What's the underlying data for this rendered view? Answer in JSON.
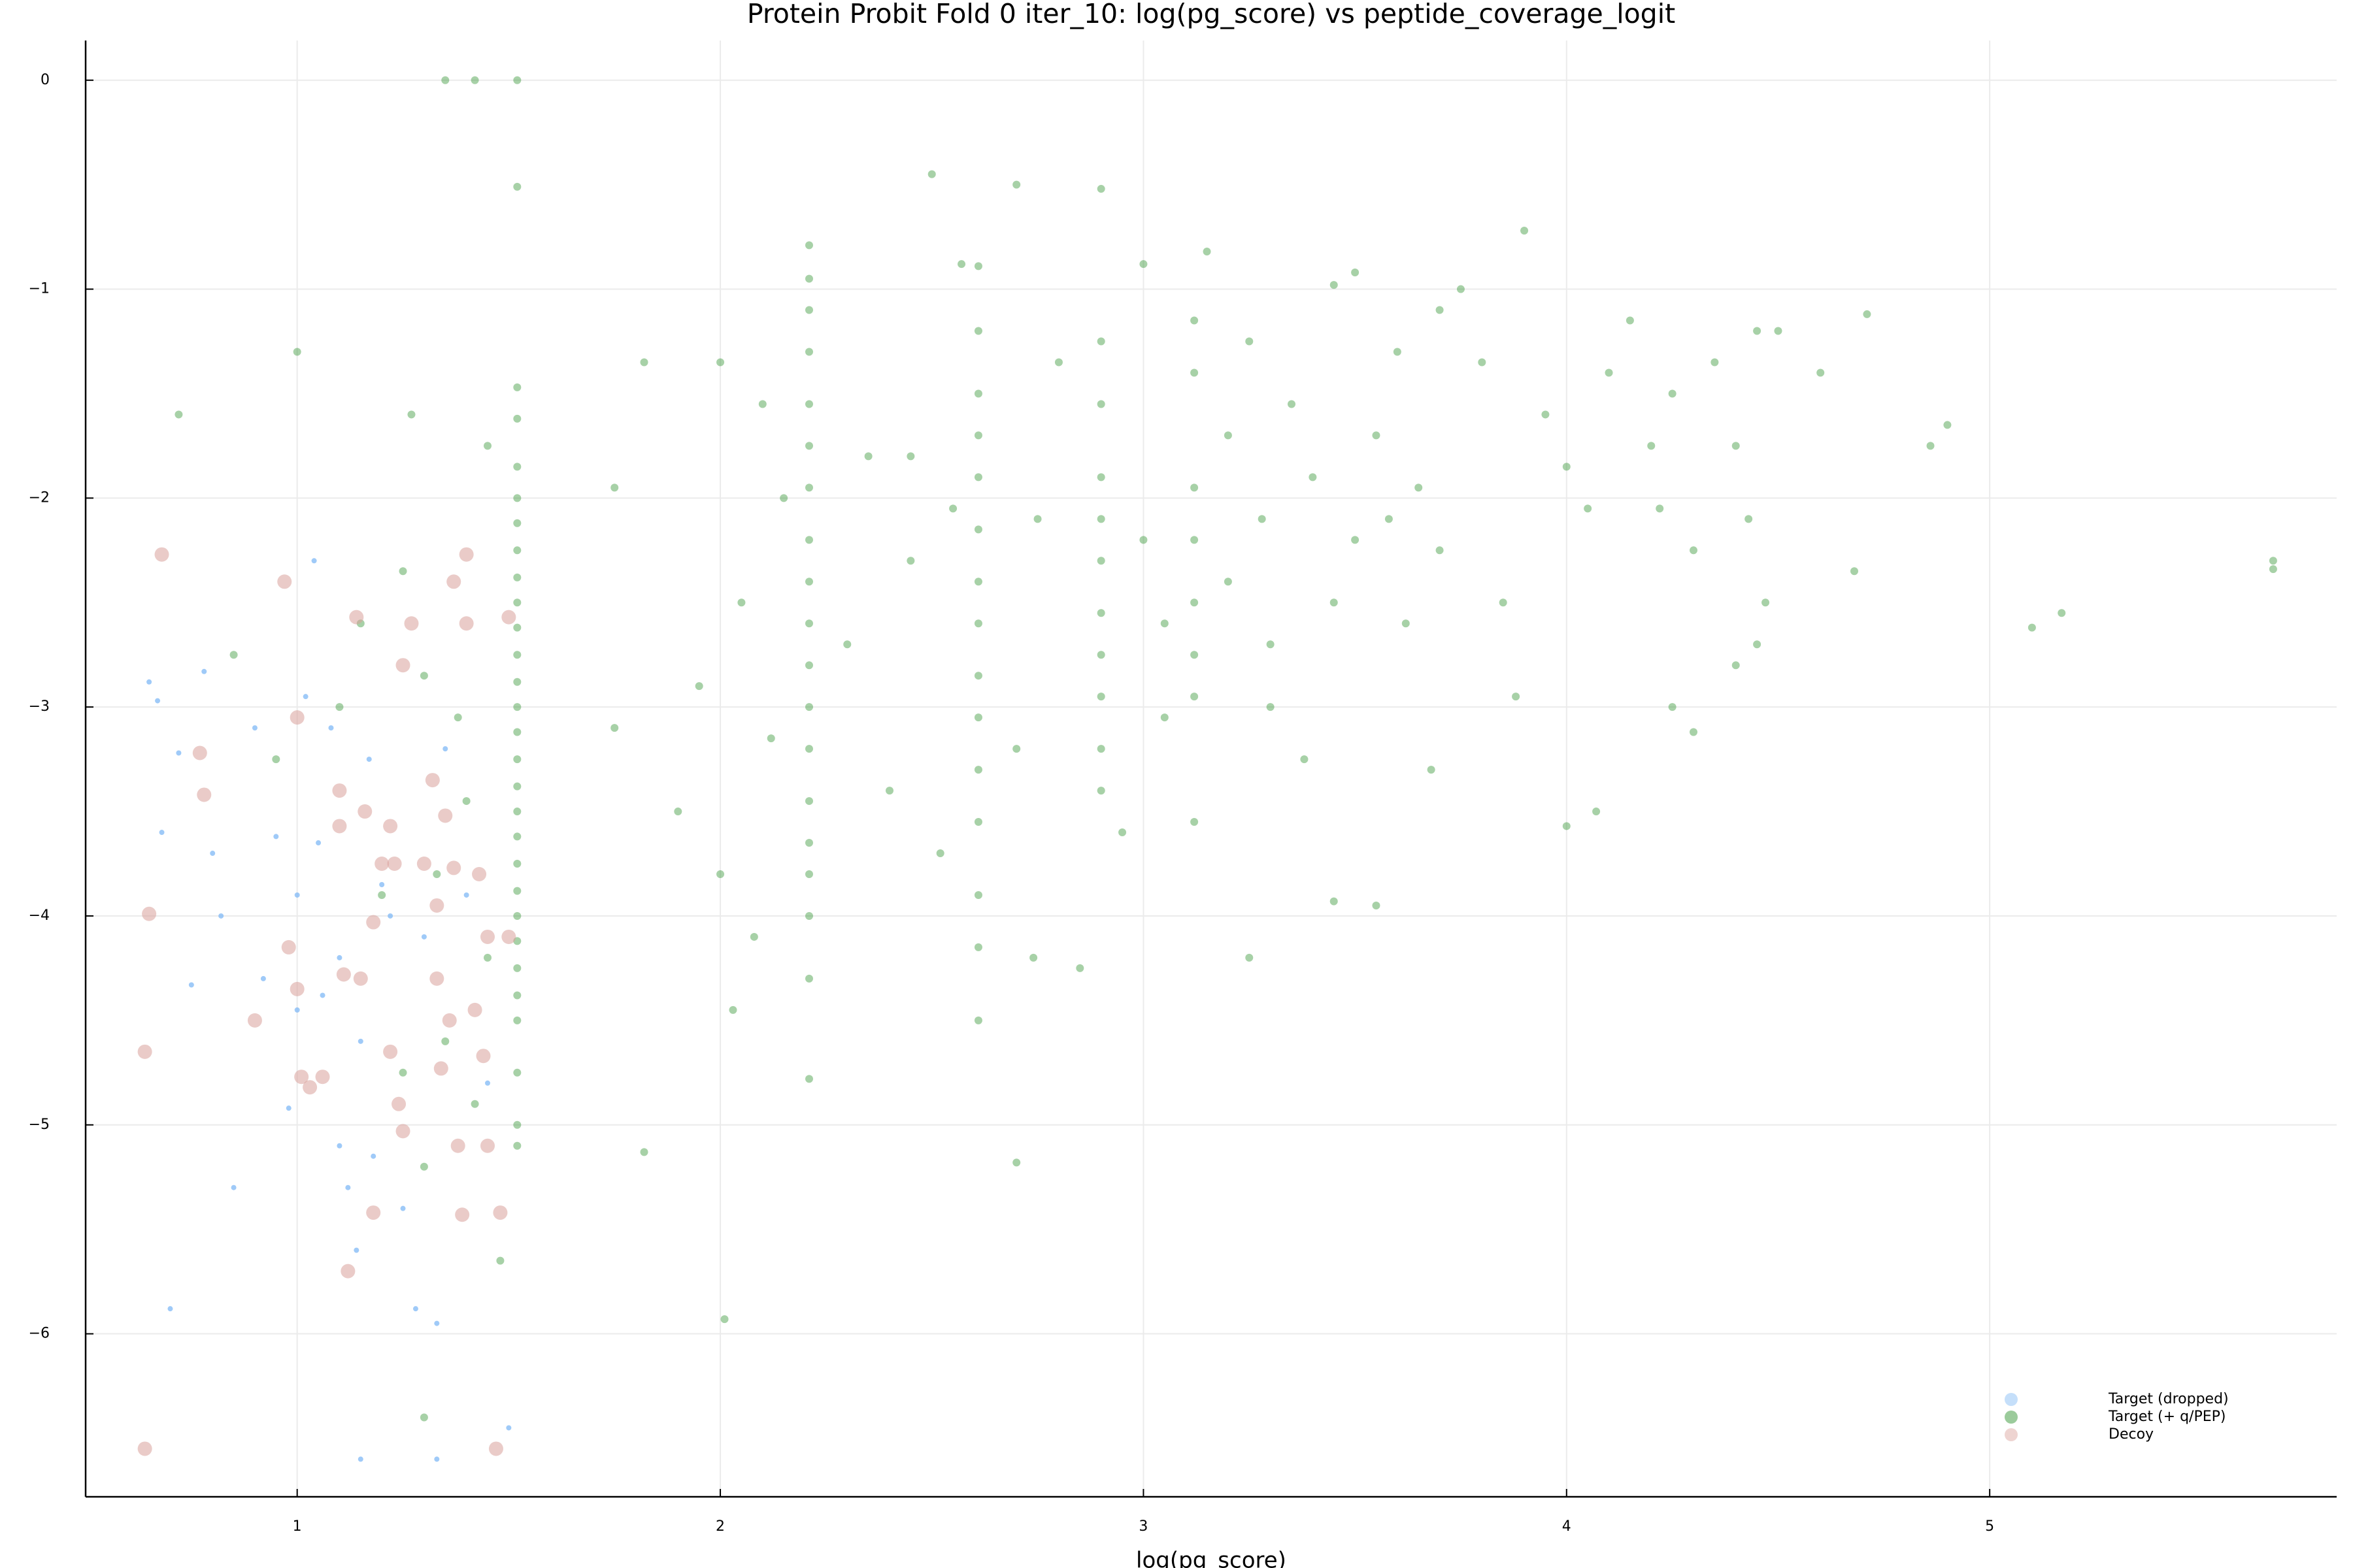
{
  "chart_data": {
    "type": "scatter",
    "title": "Protein Probit Fold 0 iter_10: log(pg_score) vs peptide_coverage_logit",
    "x_label": "log(pg_score)",
    "xlim": [
      0.5,
      5.82
    ],
    "ylim": [
      -6.78,
      0.19
    ],
    "xticks": [
      1,
      2,
      3,
      4,
      5
    ],
    "yticks": [
      {
        "value": 0,
        "label": "0"
      },
      {
        "value": -1,
        "label": "−1"
      },
      {
        "value": -2,
        "label": "−2"
      },
      {
        "value": -3,
        "label": "−3"
      },
      {
        "value": -4,
        "label": "−4"
      },
      {
        "value": -5,
        "label": "−5"
      },
      {
        "value": -6,
        "label": "−6"
      }
    ],
    "grid": true,
    "legend": "bottom-right",
    "series": [
      {
        "name": "Target (dropped)",
        "color": "#7fb8f5",
        "x": [
          0.65,
          0.67,
          0.72,
          0.75,
          0.78,
          0.8,
          0.82,
          0.85,
          0.9,
          0.92,
          0.95,
          0.98,
          1.0,
          1.02,
          1.04,
          1.05,
          1.06,
          1.08,
          1.1,
          1.12,
          1.14,
          1.15,
          1.17,
          1.18,
          1.2,
          1.22,
          1.25,
          1.28,
          1.3,
          1.33,
          1.35,
          1.4,
          1.45,
          1.5,
          1.15,
          1.33,
          0.7,
          0.68,
          1.1,
          1.0
        ],
        "values": [
          -2.88,
          -2.97,
          -3.22,
          -4.33,
          -2.83,
          -3.7,
          -4.0,
          -5.3,
          -3.1,
          -4.3,
          -3.62,
          -4.92,
          -3.9,
          -2.95,
          -2.3,
          -3.65,
          -4.38,
          -3.1,
          -4.2,
          -5.3,
          -5.6,
          -4.6,
          -3.25,
          -5.15,
          -3.85,
          -4.0,
          -5.4,
          -5.88,
          -4.1,
          -5.95,
          -3.2,
          -3.9,
          -4.8,
          -6.45,
          -6.6,
          -6.6,
          -5.88,
          -3.6,
          -5.1,
          -4.45
        ]
      },
      {
        "name": "Target (+ q/PEP)",
        "color": "#228b22",
        "x": [
          1.52,
          1.52,
          1.52,
          1.52,
          1.52,
          1.52,
          1.52,
          1.52,
          1.52,
          1.52,
          1.52,
          1.52,
          1.52,
          1.52,
          1.52,
          1.52,
          1.52,
          1.52,
          1.52,
          1.52,
          1.52,
          1.52,
          1.52,
          1.52,
          1.52,
          1.52,
          1.52,
          1.52,
          1.52,
          2.21,
          2.21,
          2.21,
          2.21,
          2.21,
          2.21,
          2.21,
          2.21,
          2.21,
          2.21,
          2.21,
          2.21,
          2.21,
          2.21,
          2.21,
          2.21,
          2.21,
          2.21,
          2.21,
          2.61,
          2.61,
          2.61,
          2.61,
          2.61,
          2.61,
          2.61,
          2.61,
          2.61,
          2.61,
          2.61,
          2.61,
          2.61,
          2.61,
          2.61,
          2.9,
          2.9,
          2.9,
          2.9,
          2.9,
          2.9,
          2.9,
          2.9,
          2.9,
          2.9,
          2.9,
          3.12,
          3.12,
          3.12,
          3.12,
          3.12,
          3.12,
          3.12,
          3.12,
          1.35,
          1.42,
          1.0,
          0.72,
          1.27,
          1.45,
          1.25,
          1.3,
          1.38,
          1.4,
          1.33,
          1.45,
          1.35,
          1.42,
          1.3,
          1.3,
          1.48,
          1.1,
          1.15,
          0.85,
          0.95,
          1.2,
          1.25,
          1.82,
          1.75,
          1.75,
          1.82,
          1.9,
          1.95,
          2.0,
          2.05,
          2.0,
          2.03,
          2.01,
          2.1,
          2.12,
          2.08,
          2.15,
          2.35,
          2.4,
          2.45,
          2.5,
          2.55,
          2.52,
          2.57,
          2.7,
          2.75,
          2.7,
          2.7,
          2.74,
          2.8,
          2.85,
          2.95,
          3.0,
          3.05,
          3.05,
          3.15,
          3.2,
          3.2,
          3.25,
          3.28,
          3.3,
          3.3,
          3.25,
          3.35,
          3.4,
          3.45,
          3.45,
          3.5,
          3.45,
          3.5,
          3.55,
          3.58,
          3.6,
          3.55,
          3.62,
          3.65,
          3.7,
          3.7,
          3.68,
          3.75,
          3.8,
          3.85,
          3.9,
          3.88,
          3.95,
          4.0,
          4.0,
          4.05,
          4.1,
          4.07,
          4.15,
          4.2,
          4.22,
          4.25,
          4.3,
          4.25,
          4.35,
          4.4,
          4.43,
          4.4,
          4.45,
          4.47,
          4.5,
          4.6,
          4.68,
          4.71,
          4.86,
          4.9,
          5.1,
          5.17,
          5.67,
          5.67,
          4.45,
          4.3,
          3.38,
          3.0,
          2.45,
          2.3
        ],
        "values": [
          0,
          -0.51,
          -1.47,
          -1.62,
          -1.85,
          -2.0,
          -2.12,
          -2.25,
          -2.38,
          -2.5,
          -2.62,
          -2.75,
          -2.88,
          -3.0,
          -3.12,
          -3.25,
          -3.38,
          -3.5,
          -3.62,
          -3.75,
          -3.88,
          -4.0,
          -4.12,
          -4.25,
          -4.38,
          -4.5,
          -4.75,
          -5.0,
          -5.1,
          -0.79,
          -0.95,
          -1.1,
          -1.3,
          -1.55,
          -1.75,
          -1.95,
          -2.2,
          -2.4,
          -2.6,
          -2.8,
          -3.0,
          -3.2,
          -3.45,
          -3.65,
          -3.8,
          -4.0,
          -4.3,
          -4.78,
          -0.89,
          -1.2,
          -1.5,
          -1.7,
          -1.9,
          -2.15,
          -2.4,
          -2.6,
          -2.85,
          -3.05,
          -3.3,
          -3.55,
          -3.9,
          -4.15,
          -4.5,
          -0.52,
          -1.25,
          -1.55,
          -1.9,
          -2.1,
          -2.3,
          -2.55,
          -2.75,
          -2.95,
          -3.2,
          -3.4,
          -1.15,
          -1.4,
          -1.95,
          -2.2,
          -2.5,
          -2.75,
          -2.95,
          -3.55,
          0,
          0,
          -1.3,
          -1.6,
          -1.6,
          -1.75,
          -2.35,
          -2.85,
          -3.05,
          -3.45,
          -3.8,
          -4.2,
          -4.6,
          -4.9,
          -5.2,
          -6.4,
          -5.65,
          -3.0,
          -2.6,
          -2.75,
          -3.25,
          -3.9,
          -4.75,
          -1.35,
          -1.95,
          -3.1,
          -5.13,
          -3.5,
          -2.9,
          -1.35,
          -2.5,
          -3.8,
          -4.45,
          -5.93,
          -1.55,
          -3.15,
          -4.1,
          -2.0,
          -1.8,
          -3.4,
          -2.3,
          -0.45,
          -2.05,
          -3.7,
          -0.88,
          -0.5,
          -2.1,
          -3.2,
          -5.18,
          -4.2,
          -1.35,
          -4.25,
          -3.6,
          -0.88,
          -2.6,
          -3.05,
          -0.82,
          -1.7,
          -2.4,
          -1.25,
          -2.1,
          -2.7,
          -3.0,
          -4.2,
          -1.55,
          -1.9,
          -0.98,
          -2.5,
          -2.2,
          -3.93,
          -0.92,
          -1.7,
          -2.1,
          -1.3,
          -3.95,
          -2.6,
          -1.95,
          -1.1,
          -2.25,
          -3.3,
          -1.0,
          -1.35,
          -2.5,
          -0.72,
          -2.95,
          -1.6,
          -1.85,
          -3.57,
          -2.05,
          -1.4,
          -3.5,
          -1.15,
          -1.75,
          -2.05,
          -1.5,
          -2.25,
          -3.0,
          -1.35,
          -1.75,
          -2.1,
          -2.8,
          -1.2,
          -2.5,
          -1.2,
          -1.4,
          -2.35,
          -1.12,
          -1.75,
          -1.65,
          -2.62,
          -2.55,
          -2.3,
          -2.34,
          -2.7,
          -3.12,
          -3.25,
          -2.2,
          -1.8,
          -2.7
        ]
      },
      {
        "name": "Decoy",
        "color": "#d9a09a",
        "x": [
          0.68,
          0.65,
          0.64,
          0.64,
          0.77,
          0.78,
          0.9,
          0.97,
          0.98,
          1.0,
          1.0,
          1.01,
          1.03,
          1.06,
          1.1,
          1.1,
          1.11,
          1.12,
          1.14,
          1.15,
          1.16,
          1.18,
          1.18,
          1.2,
          1.22,
          1.22,
          1.23,
          1.24,
          1.25,
          1.25,
          1.27,
          1.3,
          1.33,
          1.33,
          1.34,
          1.35,
          1.36,
          1.37,
          1.37,
          1.38,
          1.39,
          1.4,
          1.42,
          1.43,
          1.44,
          1.45,
          1.45,
          1.47,
          1.48,
          1.5,
          1.5,
          1.4,
          1.32
        ],
        "values": [
          -2.27,
          -3.99,
          -4.65,
          -6.55,
          -3.22,
          -3.42,
          -4.5,
          -2.4,
          -4.15,
          -4.35,
          -3.05,
          -4.77,
          -4.82,
          -4.77,
          -3.4,
          -3.57,
          -4.28,
          -5.7,
          -2.57,
          -4.3,
          -3.5,
          -4.03,
          -5.42,
          -3.75,
          -3.57,
          -4.65,
          -3.75,
          -4.9,
          -2.8,
          -5.03,
          -2.6,
          -3.75,
          -3.95,
          -4.3,
          -4.73,
          -3.52,
          -4.5,
          -2.4,
          -3.77,
          -5.1,
          -5.43,
          -2.6,
          -4.45,
          -3.8,
          -4.67,
          -4.1,
          -5.1,
          -6.55,
          -5.42,
          -2.57,
          -4.1,
          -2.27,
          -3.35
        ]
      }
    ]
  }
}
